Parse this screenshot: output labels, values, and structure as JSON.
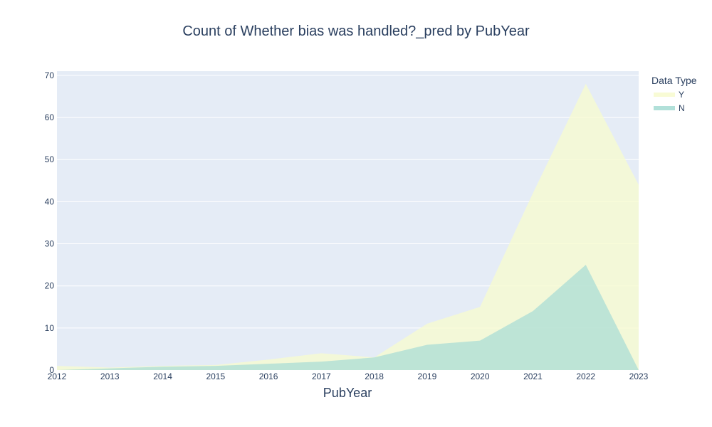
{
  "chart_data": {
    "type": "area",
    "title": "Count of Whether bias was handled?_pred by PubYear",
    "xlabel": "PubYear",
    "ylabel": "",
    "x": [
      2012,
      2013,
      2014,
      2015,
      2016,
      2017,
      2018,
      2019,
      2020,
      2021,
      2022,
      2023
    ],
    "ylim": [
      0,
      71
    ],
    "yticks": [
      0,
      10,
      20,
      30,
      40,
      50,
      60,
      70
    ],
    "grid": true,
    "legend_title": "Data Type",
    "legend_position": "top-right",
    "series": [
      {
        "name": "Y",
        "values": [
          1,
          0.6,
          1,
          1.2,
          2.5,
          4,
          3,
          11,
          15,
          42,
          68,
          44
        ],
        "color": "#f7fbd0"
      },
      {
        "name": "N",
        "values": [
          0,
          0.4,
          0.8,
          1,
          1.5,
          2,
          3,
          6,
          7,
          14,
          25,
          0
        ],
        "color": "#a8ddd5"
      }
    ]
  }
}
